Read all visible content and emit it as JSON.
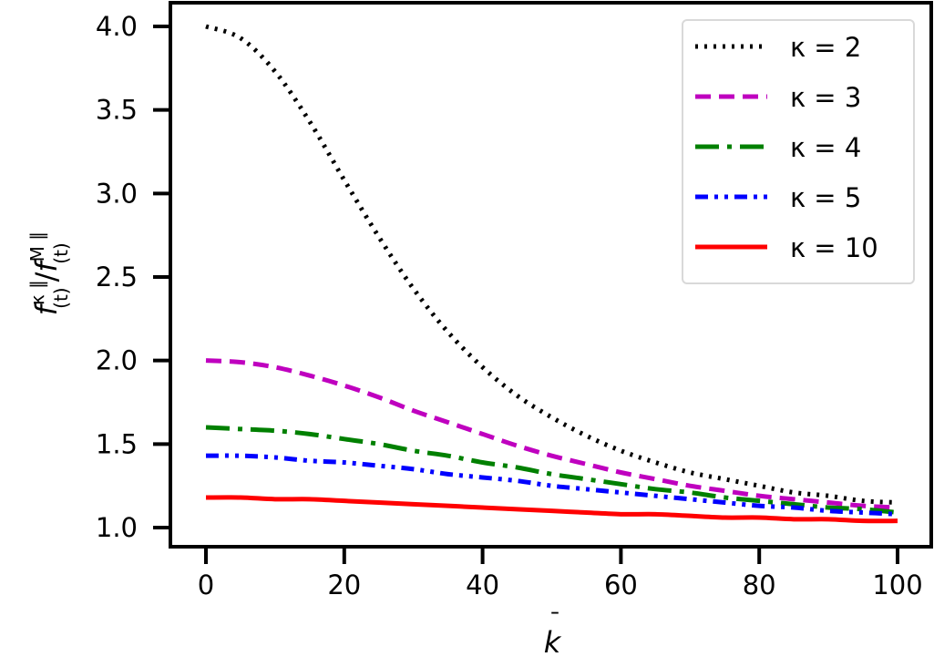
{
  "chart_data": {
    "type": "line",
    "title": "",
    "xlabel": "k̄",
    "ylabel": "f(t)^{κ∥} / f(t)^{M∥}",
    "xlim": [
      -5,
      105
    ],
    "ylim": [
      0.89,
      4.14
    ],
    "xticks": [
      0,
      20,
      40,
      60,
      80,
      100
    ],
    "xtick_labels": [
      "0",
      "20",
      "40",
      "60",
      "80",
      "100"
    ],
    "yticks": [
      1.0,
      1.5,
      2.0,
      2.5,
      3.0,
      3.5,
      4.0
    ],
    "ytick_labels": [
      "1.0",
      "1.5",
      "2.0",
      "2.5",
      "3.0",
      "3.5",
      "4.0"
    ],
    "grid": false,
    "legend_position": "upper right",
    "x": [
      0,
      5,
      10,
      15,
      20,
      25,
      30,
      35,
      40,
      45,
      50,
      55,
      60,
      65,
      70,
      75,
      80,
      85,
      90,
      95,
      100
    ],
    "series": [
      {
        "name": "κ = 2",
        "kappa": 2,
        "color": "#000000",
        "style": "dotted",
        "values": [
          4.0,
          3.93,
          3.73,
          3.43,
          3.08,
          2.74,
          2.43,
          2.17,
          1.96,
          1.79,
          1.66,
          1.55,
          1.46,
          1.39,
          1.33,
          1.29,
          1.25,
          1.21,
          1.19,
          1.16,
          1.15
        ]
      },
      {
        "name": "κ = 3",
        "kappa": 3,
        "color": "#bf00bf",
        "style": "dashed",
        "values": [
          2.0,
          1.99,
          1.96,
          1.91,
          1.85,
          1.78,
          1.7,
          1.63,
          1.56,
          1.49,
          1.43,
          1.38,
          1.33,
          1.29,
          1.25,
          1.22,
          1.19,
          1.17,
          1.15,
          1.13,
          1.12
        ]
      },
      {
        "name": "κ = 4",
        "kappa": 4,
        "color": "#008000",
        "style": "dashdot",
        "values": [
          1.6,
          1.59,
          1.58,
          1.56,
          1.53,
          1.5,
          1.46,
          1.43,
          1.39,
          1.36,
          1.32,
          1.29,
          1.26,
          1.23,
          1.21,
          1.18,
          1.16,
          1.14,
          1.12,
          1.11,
          1.09
        ]
      },
      {
        "name": "κ = 5",
        "kappa": 5,
        "color": "#0000ff",
        "style": "dashdotdot",
        "values": [
          1.43,
          1.43,
          1.42,
          1.4,
          1.39,
          1.37,
          1.35,
          1.32,
          1.3,
          1.28,
          1.25,
          1.23,
          1.21,
          1.19,
          1.17,
          1.15,
          1.13,
          1.12,
          1.1,
          1.09,
          1.08
        ]
      },
      {
        "name": "κ = 10",
        "kappa": 10,
        "color": "#ff0000",
        "style": "solid",
        "values": [
          1.18,
          1.18,
          1.17,
          1.17,
          1.16,
          1.15,
          1.14,
          1.13,
          1.12,
          1.11,
          1.1,
          1.09,
          1.08,
          1.08,
          1.07,
          1.06,
          1.06,
          1.05,
          1.05,
          1.04,
          1.04
        ]
      }
    ]
  },
  "legend": {
    "items": [
      {
        "label": "κ = 2"
      },
      {
        "label": "κ = 3"
      },
      {
        "label": "κ = 4"
      },
      {
        "label": "κ = 5"
      },
      {
        "label": "κ = 10"
      }
    ]
  },
  "axes": {
    "xlabel_main": "k",
    "xlabel_bar": "¯",
    "ylabel_f1": "f",
    "ylabel_sup1": "κ ∥",
    "ylabel_sub1": "(t)",
    "ylabel_slash": "/",
    "ylabel_f2": "f",
    "ylabel_sup2": "M ∥",
    "ylabel_sub2": "(t)"
  }
}
